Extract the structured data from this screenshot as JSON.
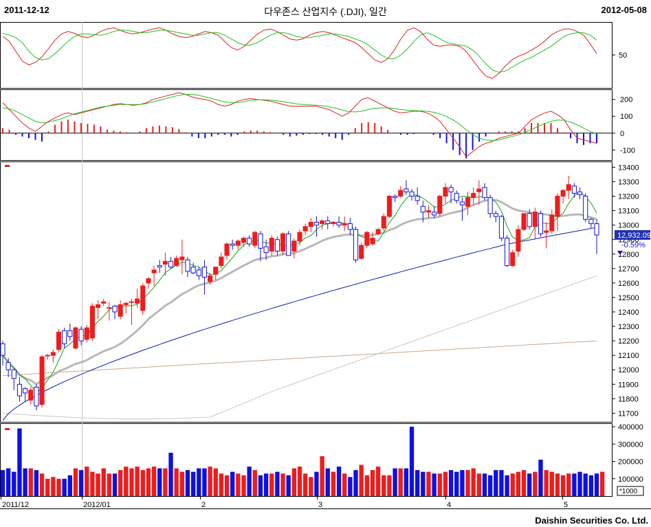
{
  "header": {
    "start_date": "2011-12-12",
    "title": "다우존스 산업지수 (.DJI), 일간",
    "end_date": "2012-05-08"
  },
  "footer": {
    "company": "Daishin Securities Co. Ltd."
  },
  "colors": {
    "up": "#ee1c1c",
    "down": "#1010e0",
    "ma5": "#18a018",
    "ma20": "#b8b8b8",
    "ma60": "#0b1ab8",
    "ma120": "#c8c8c8",
    "ma240": "#c8a888",
    "stoch_k": "#e02020",
    "stoch_d": "#20c020"
  },
  "chart_data": [
    {
      "type": "line",
      "panel": "stochastic",
      "y_ticks": [
        50
      ],
      "series": [
        {
          "values": [
            80,
            72,
            56,
            40,
            34,
            38,
            47,
            60,
            74,
            84,
            88,
            85,
            80,
            78,
            82,
            88,
            92,
            94,
            90,
            86,
            84,
            86,
            89,
            92,
            94,
            90,
            84,
            80,
            78,
            80,
            84,
            88,
            86,
            82,
            72,
            62,
            58,
            64,
            74,
            84,
            90,
            92,
            88,
            82,
            76,
            74,
            76,
            82,
            86,
            88,
            86,
            82,
            78,
            74,
            70,
            62,
            52,
            42,
            38,
            44,
            58,
            76,
            90,
            94,
            88,
            76,
            66,
            64,
            66,
            66,
            64,
            56,
            42,
            28,
            16,
            12,
            20,
            32,
            42,
            48,
            52,
            58,
            64,
            72,
            82,
            88,
            92,
            92,
            88,
            82,
            68,
            52
          ]
        },
        {
          "values": [
            85,
            82,
            78,
            70,
            56,
            46,
            42,
            44,
            52,
            62,
            72,
            80,
            84,
            84,
            83,
            82,
            84,
            88,
            90,
            90,
            88,
            86,
            86,
            88,
            90,
            90,
            88,
            86,
            84,
            82,
            82,
            84,
            86,
            86,
            82,
            76,
            70,
            66,
            66,
            70,
            76,
            82,
            86,
            86,
            84,
            80,
            78,
            78,
            80,
            82,
            84,
            84,
            82,
            80,
            76,
            72,
            66,
            58,
            50,
            44,
            44,
            50,
            60,
            72,
            82,
            86,
            82,
            76,
            70,
            68,
            66,
            64,
            58,
            48,
            36,
            26,
            22,
            24,
            30,
            36,
            42,
            46,
            52,
            58,
            64,
            72,
            80,
            84,
            86,
            86,
            82,
            74
          ]
        }
      ]
    },
    {
      "type": "line",
      "panel": "macd",
      "y_ticks": [
        200,
        100,
        0,
        -100
      ],
      "series": [
        {
          "values": [
            180,
            140,
            100,
            60,
            30,
            10,
            40,
            70,
            90,
            110,
            120,
            110,
            120,
            130,
            140,
            150,
            160,
            170,
            175,
            170,
            165,
            170,
            180,
            200,
            210,
            220,
            230,
            240,
            230,
            215,
            205,
            200,
            190,
            170,
            160,
            170,
            190,
            200,
            205,
            200,
            195,
            190,
            180,
            170,
            160,
            160,
            160,
            160,
            160,
            150,
            140,
            120,
            100,
            120,
            160,
            200,
            210,
            190,
            170,
            150,
            130,
            120,
            125,
            130,
            130,
            120,
            100,
            70,
            20,
            -30,
            -80,
            -140,
            -110,
            -80,
            -60,
            -50,
            -30,
            -20,
            -10,
            0,
            40,
            80,
            100,
            120,
            130,
            110,
            80,
            20,
            -30,
            -40,
            -50,
            -60
          ]
        },
        {
          "values": [
            150,
            145,
            130,
            110,
            90,
            70,
            60,
            65,
            75,
            85,
            100,
            115,
            125,
            135,
            145,
            155,
            160,
            165,
            170,
            170,
            170,
            170,
            175,
            185,
            195,
            205,
            215,
            225,
            230,
            230,
            225,
            215,
            205,
            195,
            185,
            180,
            182,
            188,
            195,
            198,
            198,
            196,
            192,
            186,
            180,
            174,
            170,
            168,
            166,
            162,
            156,
            148,
            138,
            128,
            126,
            130,
            140,
            148,
            150,
            150,
            146,
            140,
            136,
            134,
            132,
            130,
            124,
            114,
            98,
            78,
            52,
            20,
            -10,
            -30,
            -40,
            -45,
            -40,
            -30,
            -20,
            -10,
            5,
            20,
            40,
            55,
            70,
            78,
            76,
            66,
            50,
            30,
            10,
            -5
          ]
        }
      ],
      "histogram": [
        30,
        20,
        -10,
        -20,
        -30,
        -40,
        -50,
        10,
        50,
        70,
        80,
        70,
        60,
        55,
        50,
        40,
        20,
        15,
        10,
        5,
        0,
        10,
        30,
        40,
        45,
        40,
        35,
        25,
        5,
        -20,
        -30,
        -30,
        -20,
        -10,
        -10,
        -20,
        -10,
        10,
        15,
        15,
        10,
        5,
        0,
        -10,
        -20,
        -15,
        -10,
        -5,
        -5,
        -10,
        -20,
        -30,
        -40,
        -10,
        30,
        60,
        65,
        60,
        40,
        20,
        0,
        -10,
        -10,
        -5,
        0,
        0,
        -10,
        -30,
        -60,
        -100,
        -130,
        -150,
        -100,
        -50,
        -20,
        0,
        10,
        10,
        10,
        10,
        30,
        60,
        60,
        60,
        60,
        30,
        5,
        -30,
        -60,
        -70,
        -60,
        -60
      ]
    },
    {
      "type": "candlestick",
      "panel": "price",
      "y_ticks": [
        13400,
        13300,
        13200,
        13100,
        13000,
        12900,
        12800,
        12700,
        12600,
        12500,
        12400,
        12300,
        12200,
        12100,
        12000,
        11900,
        11800,
        11700
      ],
      "ylim": [
        11640,
        13440
      ],
      "last_close": "12,932.09",
      "change_pct": "-0.59%",
      "ohlc": [
        [
          12180,
          12200,
          12030,
          12100
        ],
        [
          12050,
          12080,
          11950,
          12000
        ],
        [
          12000,
          12010,
          11860,
          11940
        ],
        [
          11900,
          11950,
          11780,
          11820
        ],
        [
          11870,
          11880,
          11780,
          11840
        ],
        [
          11790,
          11880,
          11760,
          11860
        ],
        [
          11880,
          11900,
          11720,
          11750
        ],
        [
          11760,
          12100,
          11740,
          12090
        ],
        [
          12100,
          12110,
          12070,
          12100
        ],
        [
          12100,
          12140,
          12050,
          12120
        ],
        [
          12140,
          12280,
          12120,
          12260
        ],
        [
          12270,
          12290,
          12150,
          12180
        ],
        [
          12270,
          12320,
          12200,
          12230
        ],
        [
          12150,
          12300,
          12140,
          12290
        ],
        [
          12280,
          12300,
          12170,
          12200
        ],
        [
          12210,
          12310,
          12190,
          12290
        ],
        [
          12220,
          12460,
          12200,
          12440
        ],
        [
          12430,
          12480,
          12350,
          12450
        ],
        [
          12460,
          12490,
          12440,
          12470
        ],
        [
          12430,
          12470,
          12340,
          12430
        ],
        [
          12440,
          12450,
          12350,
          12400
        ],
        [
          12370,
          12480,
          12350,
          12450
        ],
        [
          12450,
          12470,
          12390,
          12460
        ],
        [
          12470,
          12490,
          12310,
          12470
        ],
        [
          12460,
          12560,
          12430,
          12490
        ],
        [
          12410,
          12600,
          12380,
          12580
        ],
        [
          12600,
          12640,
          12560,
          12630
        ],
        [
          12670,
          12720,
          12580,
          12690
        ],
        [
          12720,
          12760,
          12670,
          12710
        ],
        [
          12730,
          12810,
          12650,
          12750
        ],
        [
          12750,
          12780,
          12700,
          12710
        ],
        [
          12720,
          12790,
          12710,
          12770
        ],
        [
          12760,
          12900,
          12660,
          12780
        ],
        [
          12760,
          12780,
          12640,
          12680
        ],
        [
          12710,
          12740,
          12660,
          12670
        ],
        [
          12690,
          12710,
          12620,
          12650
        ],
        [
          12710,
          12760,
          12520,
          12640
        ],
        [
          12610,
          12670,
          12590,
          12650
        ],
        [
          12660,
          12710,
          12620,
          12710
        ],
        [
          12720,
          12810,
          12700,
          12780
        ],
        [
          12790,
          12880,
          12760,
          12870
        ],
        [
          12870,
          12900,
          12830,
          12860
        ],
        [
          12860,
          12900,
          12830,
          12890
        ],
        [
          12880,
          12920,
          12850,
          12910
        ],
        [
          12910,
          12930,
          12850,
          12870
        ],
        [
          12860,
          12960,
          12840,
          12950
        ],
        [
          12940,
          12960,
          12750,
          12840
        ],
        [
          12850,
          12900,
          12760,
          12810
        ],
        [
          12820,
          12930,
          12790,
          12910
        ],
        [
          12900,
          12920,
          12790,
          12820
        ],
        [
          12820,
          12950,
          12790,
          12940
        ],
        [
          12940,
          12960,
          12790,
          12790
        ],
        [
          12820,
          12910,
          12770,
          12890
        ],
        [
          12890,
          12970,
          12860,
          12950
        ],
        [
          12960,
          13010,
          12930,
          12990
        ],
        [
          12990,
          13050,
          12950,
          13020
        ],
        [
          13020,
          13060,
          12920,
          13000
        ],
        [
          13010,
          13040,
          12970,
          13030
        ],
        [
          13030,
          13060,
          12970,
          13010
        ],
        [
          13010,
          13030,
          12990,
          13020
        ],
        [
          13020,
          13060,
          12980,
          13000
        ],
        [
          13000,
          13060,
          12960,
          13010
        ],
        [
          13010,
          13050,
          12930,
          12970
        ],
        [
          12970,
          12990,
          12740,
          12760
        ],
        [
          12770,
          12880,
          12760,
          12860
        ],
        [
          12860,
          12960,
          12840,
          12950
        ],
        [
          12870,
          12950,
          12860,
          12910
        ],
        [
          12940,
          12980,
          12930,
          12970
        ],
        [
          12980,
          13080,
          12960,
          13060
        ],
        [
          13060,
          13210,
          13050,
          13200
        ],
        [
          13200,
          13210,
          13160,
          13190
        ],
        [
          13200,
          13270,
          13190,
          13240
        ],
        [
          13250,
          13310,
          13210,
          13230
        ],
        [
          13230,
          13250,
          13170,
          13200
        ],
        [
          13200,
          13260,
          13140,
          13170
        ],
        [
          13130,
          13170,
          13020,
          13090
        ],
        [
          13090,
          13140,
          13050,
          13100
        ],
        [
          13090,
          13130,
          13050,
          13070
        ],
        [
          13080,
          13210,
          13060,
          13200
        ],
        [
          13200,
          13290,
          13150,
          13260
        ],
        [
          13260,
          13280,
          13150,
          13230
        ],
        [
          13220,
          13240,
          13150,
          13170
        ],
        [
          13160,
          13190,
          13030,
          13140
        ],
        [
          13130,
          13230,
          13070,
          13190
        ],
        [
          13190,
          13260,
          13140,
          13220
        ],
        [
          13230,
          13310,
          13140,
          13250
        ],
        [
          13260,
          13290,
          13170,
          13190
        ],
        [
          13190,
          13210,
          13050,
          13080
        ],
        [
          13080,
          13100,
          13020,
          13060
        ],
        [
          13060,
          13070,
          12890,
          12910
        ],
        [
          12910,
          12930,
          12710,
          12720
        ],
        [
          12720,
          12830,
          12710,
          12810
        ],
        [
          12820,
          13000,
          12780,
          12970
        ],
        [
          12970,
          13080,
          12960,
          13080
        ],
        [
          13080,
          13110,
          12970,
          12990
        ],
        [
          12990,
          13120,
          12900,
          13090
        ],
        [
          13080,
          13100,
          12920,
          12940
        ],
        [
          12950,
          13020,
          12840,
          12960
        ],
        [
          12960,
          13110,
          12940,
          13070
        ],
        [
          13060,
          13220,
          12960,
          13200
        ],
        [
          13200,
          13250,
          13150,
          13240
        ],
        [
          13240,
          13340,
          13180,
          13280
        ],
        [
          13270,
          13290,
          13190,
          13220
        ],
        [
          13230,
          13260,
          13180,
          13210
        ],
        [
          13200,
          13220,
          13020,
          13040
        ],
        [
          13040,
          13050,
          12980,
          13010
        ],
        [
          13010,
          13040,
          12800,
          12932
        ]
      ]
    },
    {
      "type": "bar",
      "panel": "volume",
      "y_ticks": [
        400000,
        300000,
        200000,
        100000
      ],
      "unit": "*1000",
      "values": [
        150,
        160,
        140,
        390,
        160,
        160,
        150,
        130,
        100,
        110,
        100,
        100,
        120,
        160,
        150,
        170,
        140,
        130,
        160,
        130,
        130,
        150,
        170,
        160,
        170,
        150,
        160,
        170,
        160,
        160,
        250,
        160,
        140,
        150,
        140,
        160,
        160,
        170,
        160,
        130,
        120,
        140,
        130,
        120,
        170,
        150,
        120,
        130,
        130,
        140,
        130,
        120,
        160,
        170,
        130,
        110,
        140,
        230,
        160,
        140,
        170,
        130,
        110,
        150,
        180,
        120,
        150,
        170,
        120,
        120,
        160,
        160,
        160,
        400,
        150,
        140,
        140,
        130,
        130,
        140,
        150,
        140,
        150,
        150,
        160,
        130,
        130,
        120,
        150,
        150,
        120,
        130,
        140,
        150,
        130,
        140,
        210,
        150,
        140,
        130,
        120,
        130,
        130,
        140,
        130,
        120,
        130,
        140
      ],
      "volume_max": 420000
    }
  ],
  "x_axis": {
    "labels": [
      "2011/12",
      "2012/01",
      "2",
      "3",
      "4",
      "5"
    ]
  }
}
